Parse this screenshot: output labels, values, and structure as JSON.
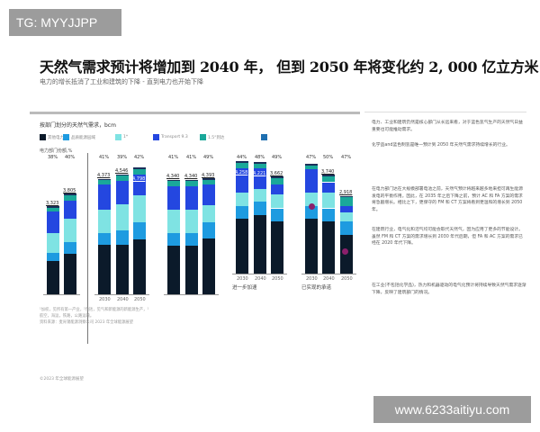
{
  "watermarks": {
    "top_left": "TG: MYYJJPP",
    "bottom_right": "www.6233aitiyu.com"
  },
  "title": "天然气需求预计将增加到 2040 年，  但到 2050 年将变化约 2, 000 亿立方米",
  "subtitle": "电力的增长抵消了工业和建筑的下降 - 直到电力也开始下降",
  "chart_data": {
    "type": "bar",
    "title": "按部门划分的天然气需求，bcm",
    "stacked": true,
    "colors": {
      "power": "#0b1a2a",
      "buildings": "#1e9be0",
      "industry": "#7fe3e3",
      "transport": "#2447e0",
      "other": "#1aa89a",
      "marker": "#8b1f6b"
    },
    "legend": [
      {
        "label": "其他电力",
        "color": "#0b1a2a"
      },
      {
        "label": "品质能源园域",
        "color": "#1e9be0"
      },
      {
        "label": "1*",
        "color": "#7fe3e3"
      },
      {
        "label": "Transport 9.3",
        "color": "#2447e0"
      },
      {
        "label": "1.5°到达",
        "color": "#1aa89a"
      },
      {
        "label": "",
        "color": "#1f6fb0"
      }
    ],
    "power_share_label": "电力部门份额,%",
    "groups": [
      {
        "name": "",
        "years": [
          "",
          ""
        ],
        "shares": [
          "38%",
          "40%"
        ],
        "totals": [
          "3,323",
          "3,805"
        ],
        "segments": [
          [
            1280,
            300,
            780,
            800,
            163
          ],
          [
            1550,
            450,
            900,
            700,
            205
          ]
        ]
      },
      {
        "name": "",
        "years": [
          "2030",
          "2040",
          "2050"
        ],
        "shares": [
          "41%",
          "39%",
          "42%"
        ],
        "totals": [
          "4,373",
          "4,546",
          "4,798"
        ],
        "segments": [
          [
            1900,
            450,
            900,
            950,
            173
          ],
          [
            1900,
            550,
            1000,
            900,
            196
          ],
          [
            2100,
            650,
            1050,
            800,
            198
          ]
        ]
      },
      {
        "name": "",
        "years": [
          "",
          "",
          ""
        ],
        "shares": [
          "41%",
          "41%",
          "49%"
        ],
        "totals": [
          "4,340",
          "4,340",
          "4,393"
        ],
        "segments": [
          [
            1850,
            500,
            900,
            900,
            190
          ],
          [
            1850,
            500,
            900,
            900,
            190
          ],
          [
            2150,
            600,
            650,
            800,
            193
          ]
        ]
      },
      {
        "name": "进一步加速",
        "years": [
          "2030",
          "2040",
          "2050"
        ],
        "shares": [
          "44%",
          "48%",
          "49%"
        ],
        "totals": [
          "4,258",
          "4,221",
          "3,662"
        ],
        "segments": [
          [
            2100,
            500,
            500,
            950,
            208
          ],
          [
            2250,
            500,
            500,
            800,
            171
          ],
          [
            2000,
            500,
            550,
            350,
            262
          ]
        ]
      },
      {
        "name": "已实现的承诺",
        "years": [
          "2030",
          "2040",
          "2050"
        ],
        "shares": [
          "47%",
          "50%",
          "47%"
        ],
        "totals": [
          "",
          "3,740",
          "2,918"
        ],
        "segments": [
          [
            2100,
            500,
            500,
            900,
            150
          ],
          [
            2000,
            500,
            600,
            400,
            240
          ],
          [
            1500,
            500,
            350,
            250,
            318
          ]
        ]
      }
    ]
  },
  "notes": [
    "¹加权，见所有第一产业，²包括，见气和新能源的新能源生产，¹",
    "航空，海运，铁路，公路运输。",
    "资料来源：麦肯锡能源洞察公司 2023 年全球能源展望"
  ],
  "right_text": [
    "电力、工业和建筑仍然是核心部门从长远来看，对于蓝色氢气生产的天然气日益重要也可能推动需求。",
    "化学品and蓝色制氢是唯一预计到 2050 年天然气需求持续增长的行业。",
    "在电力部门达在大规模部署电池之前，天然气预计将越来越多地来担可再生能源发电的平衡作用。因此，在 2035 年之后下降之前，预计 AC 和 FA 方案的需求将急剧增长。相比之下，更保守的 FM 和 CT 方案将看到更温和的增长到 2050 年。",
    "在建筑行业，电气化和沼气均可能会取代天然气，因为应用了更多的节能设计。虽然 FM 和 CT 方案的需求增长到 2030 年代后期，但 FA 和 AC 方案的需求已经在 2020 年代下降。",
    "在工业(不包括化学品)，热力和机器驱动的电气化预计将持续导致天然气需求逐渐下降，反映了建筑部门的情况。"
  ],
  "footer": "©2023 年全球能源展望"
}
